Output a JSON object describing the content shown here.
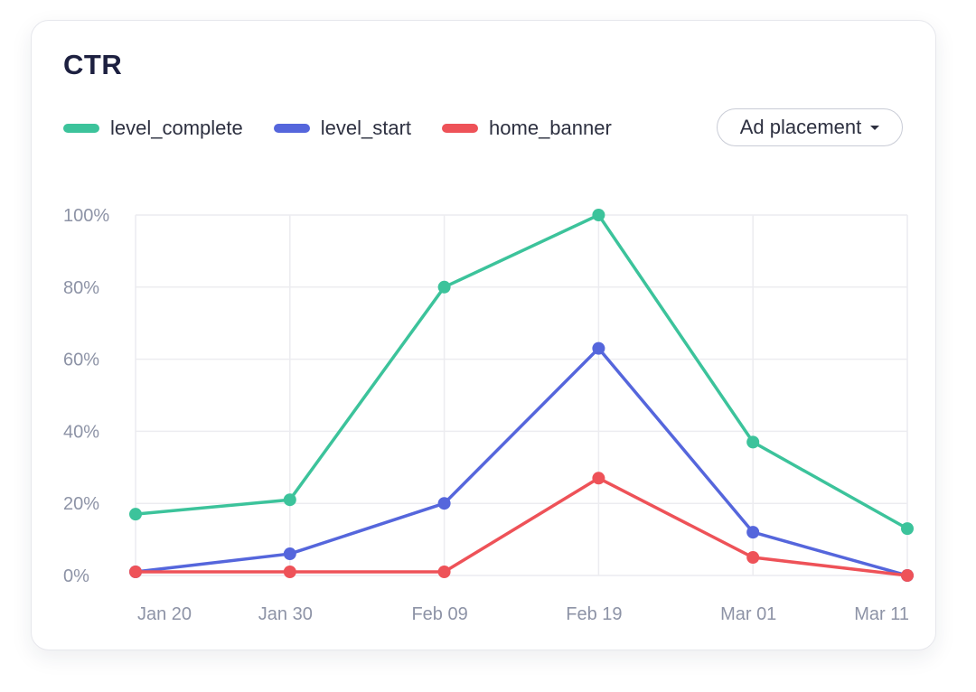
{
  "card": {
    "title": "CTR"
  },
  "controls": {
    "dropdown_label": "Ad placement"
  },
  "colors": {
    "level_complete": "#3cc39b",
    "level_start": "#5566dc",
    "home_banner": "#ee5258",
    "grid": "#ececf0",
    "tick_text": "#8d93a6"
  },
  "chart_data": {
    "type": "line",
    "title": "CTR",
    "x": [
      "Jan 20",
      "Jan 30",
      "Feb 09",
      "Feb 19",
      "Mar 01",
      "Mar 11"
    ],
    "y_ticks": [
      "0%",
      "20%",
      "40%",
      "60%",
      "80%",
      "100%"
    ],
    "ylim": [
      0,
      100
    ],
    "grid": true,
    "legend_position": "top-left",
    "series": [
      {
        "name": "level_complete",
        "color": "#3cc39b",
        "values": [
          17,
          21,
          80,
          100,
          37,
          13
        ]
      },
      {
        "name": "level_start",
        "color": "#5566dc",
        "values": [
          1,
          6,
          20,
          63,
          12,
          0
        ]
      },
      {
        "name": "home_banner",
        "color": "#ee5258",
        "values": [
          1,
          1,
          1,
          27,
          5,
          0
        ]
      }
    ]
  }
}
